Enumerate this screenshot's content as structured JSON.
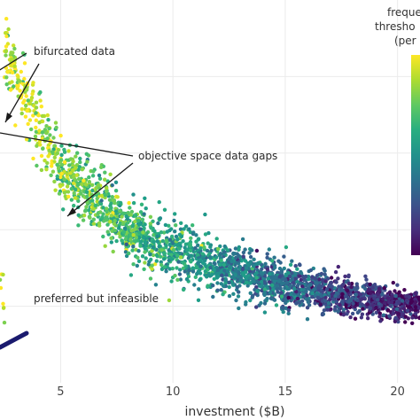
{
  "chart_data": {
    "type": "scatter",
    "xlabel": "investment ($B)",
    "x_ticks": [
      5,
      10,
      15,
      20
    ],
    "xlim": [
      2.3,
      21.0
    ],
    "ylim": [
      0.0,
      1.0
    ],
    "grid": true,
    "colorscale": "viridis",
    "colorbar": {
      "title_lines": [
        "freque",
        "thresho",
        "(per"
      ],
      "placement": "right"
    },
    "colors": {
      "low": "#440154",
      "mid": "#21918c",
      "high": "#fde725",
      "preferred_line": "#1a1a6e",
      "arrow": "#1a1a1a"
    },
    "series": [
      {
        "frontier_shape": "decreasing-convex",
        "x_range": [
          2.3,
          21.0
        ],
        "y_at_x": [
          [
            2.5,
            0.86
          ],
          [
            5,
            0.56
          ],
          [
            8,
            0.4
          ],
          [
            12,
            0.3
          ],
          [
            16,
            0.24
          ],
          [
            21,
            0.2
          ]
        ],
        "color_trend": "yellow-green at low investment to dark purple at high investment"
      }
    ],
    "annotations": [
      {
        "text": "bifurcated data"
      },
      {
        "text": "objective space data gaps"
      },
      {
        "text": "preferred but infeasible"
      }
    ]
  }
}
